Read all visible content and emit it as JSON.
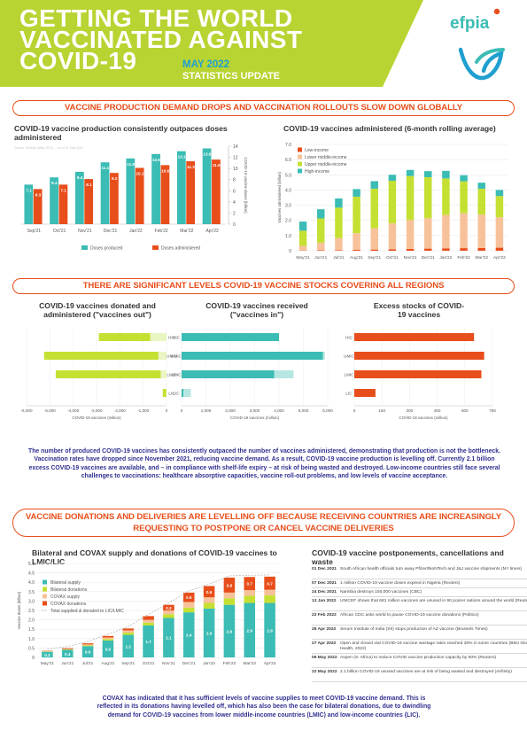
{
  "header": {
    "title_lines": [
      "GETTING THE WORLD",
      "VACCINATED AGAINST",
      "COVID-19"
    ],
    "date": "MAY 2022",
    "subtitle": "STATISTICS UPDATE",
    "logo_text": "efpia",
    "colors": {
      "green": "#b8d432",
      "orange": "#e84e1b",
      "teal": "#3bbcb4",
      "navy": "#303090"
    }
  },
  "section1": {
    "banner": "VACCINE PRODUCTION DEMAND DROPS AND VACCINATION ROLLOUTS SLOW DOWN GLOBALLY"
  },
  "section2": {
    "banner": "THERE ARE SIGNIFICANT LEVELS COVID-19 VACCINE STOCKS COVERING ALL REGIONS",
    "paragraph": "The number of produced COVID-19 vaccines has consistently outpaced the number of vaccines administered, demonstrating that production is not the bottleneck. Vaccination rates have dropped since November 2021, reducing vaccine demand. As a result, COVID-19 vaccine production is levelling off. Currently 2.1 billion excess COVID-19 vaccines are available, and – in compliance with shelf-life expiry – at risk of being wasted and destroyed. Low-income countries still face several challenges to vaccinations: healthcare absorptive capacities, vaccine roll-out problems, and low levels of vaccine acceptance."
  },
  "section3": {
    "banner_lines": [
      "VACCINE DONATIONS AND DELIVERIES ARE LEVELLING OFF BECAUSE RECEIVING COUNTRIES ARE INCREASINGLY",
      "REQUESTING TO POSTPONE OR CANCEL VACCINE DELIVERIES"
    ],
    "paragraph": "COVAX has indicated that it has sufficient levels of vaccine supplies to meet COVID-19 vaccine demand. This is reflected in its donations having levelled off, which has also been the case for bilateral donations, due to dwindling demand for COVID-19 vaccines from lower middle-income countries (LMIC) and low-income countries (LIC).",
    "timeline_title": "COVID-19 vaccine postponements, cancellations and waste",
    "timeline": [
      {
        "date": "01 Dec 2021",
        "text": "South African health officials turn away Pfizer/BioNTech and J&J vaccine shipments (NY times)"
      },
      {
        "date": "07 Dec 2021",
        "text": "1 million COVID-19 vaccine doses expired in Nigeria (Reuters)"
      },
      {
        "date": "24 Dec 2021",
        "text": "Namibia destroys 150,000 vaccines (CBC)"
      },
      {
        "date": "13 Jan 2022",
        "text": "UNICEF shows that 681 million vaccines are unused in 90 poorer nations around the world (Reuters)"
      },
      {
        "date": "22 Feb 2022",
        "text": "African CDC asks world to pause COVID-19 vaccine donations (Politico)"
      },
      {
        "date": "26 Apr 2022",
        "text": "Serum Institute of India (SII) stops production of AZ vaccine (Brussels Times)"
      },
      {
        "date": "27 Apr 2022",
        "text": "Open and closed vial COVID-19 vaccine wastage rates reached 30% in some countries (BMJ Global Health, 2022)"
      },
      {
        "date": "05 May 2022",
        "text": "Aspen (S. Africa) to reduce COVID vaccine production capacity by 50% (Reuters)"
      },
      {
        "date": "22 May 2022",
        "text": "2.1 billion COVID-19 unused vaccines are at risk of being wasted and destroyed (Airfinity)"
      }
    ]
  },
  "chart_data": [
    {
      "id": "production",
      "type": "bar",
      "title": "COVID-19 vaccine production consistently outpaces doses administered",
      "note": "Source: Airfinity (May 2022) ... as of 11 May 2022",
      "categories": [
        "Sep'21",
        "Oct'21",
        "Nov'21",
        "Dec'21",
        "Jan'22",
        "Feb'22",
        "Mar'22",
        "Apr'22"
      ],
      "series": [
        {
          "name": "Doses produced",
          "color": "#3bbcb4",
          "values": [
            7.1,
            8.4,
            9.4,
            11.1,
            11.8,
            12.6,
            13.1,
            13.6
          ]
        },
        {
          "name": "Doses administered",
          "color": "#e84e1b",
          "values": [
            6.3,
            7.1,
            8.1,
            9.2,
            10.1,
            10.6,
            11.3,
            11.6
          ]
        }
      ],
      "ylabel": "COVID-19 vaccine doses (billion)",
      "ylim": [
        0,
        14
      ],
      "yticks": [
        0,
        2,
        4,
        6,
        8,
        10,
        12,
        14
      ]
    },
    {
      "id": "administered",
      "type": "bar",
      "stacked": true,
      "title": "COVID-19 vaccines administered (6-month rolling average)",
      "categories": [
        "May'21",
        "Jun'21",
        "Jul'21",
        "Aug'21",
        "Sep'21",
        "Oct'21",
        "Nov'21",
        "Dec'21",
        "Jan'22",
        "Feb'22",
        "Mar'22",
        "Apr'22"
      ],
      "series": [
        {
          "name": "Low-income",
          "color": "#e84e1b",
          "values": [
            0.02,
            0.03,
            0.04,
            0.06,
            0.08,
            0.1,
            0.12,
            0.14,
            0.16,
            0.17,
            0.18,
            0.2
          ]
        },
        {
          "name": "Lower middle-income",
          "color": "#f7c29a",
          "values": [
            0.3,
            0.5,
            0.8,
            1.1,
            1.4,
            1.7,
            1.9,
            2.0,
            2.2,
            2.3,
            2.2,
            2.0
          ]
        },
        {
          "name": "Upper middle-income",
          "color": "#c5e032",
          "values": [
            1.0,
            1.6,
            2.0,
            2.4,
            2.6,
            2.8,
            2.9,
            2.7,
            2.4,
            2.1,
            1.7,
            1.4
          ]
        },
        {
          "name": "High-income",
          "color": "#3bbcb4",
          "values": [
            0.6,
            0.6,
            0.6,
            0.5,
            0.5,
            0.4,
            0.4,
            0.4,
            0.5,
            0.4,
            0.4,
            0.4
          ]
        }
      ],
      "ylabel": "Vaccines administered (billion)",
      "ylim": [
        0,
        7
      ],
      "yticks": [
        "0",
        "1.0",
        "2.0",
        "3.0",
        "4.0",
        "5.0",
        "6.0",
        "7.0"
      ]
    },
    {
      "id": "donated-out",
      "type": "bar",
      "orientation": "horizontal",
      "title": "COVID-19 vaccines donated and administered (\"vaccines out\")",
      "categories": [
        "HIC",
        "UMIC",
        "LMIC",
        "LIC"
      ],
      "series": [
        {
          "name": "Vaccines donated (out)",
          "color": "#eaf5c4",
          "values": [
            -700,
            -350,
            -250,
            -10
          ]
        },
        {
          "name": "Vaccinations",
          "color": "#c5e032",
          "values": [
            -2200,
            -4900,
            -4500,
            -150
          ]
        }
      ],
      "xlabel": "COVID-19 vaccines (million)",
      "xlim": [
        -6000,
        0
      ],
      "xticks": [
        "-6,000",
        "-5,000",
        "-4,000",
        "-3,000",
        "-2,000",
        "-1,000",
        "0"
      ]
    },
    {
      "id": "received-in",
      "type": "bar",
      "orientation": "horizontal",
      "title": "COVID-19 vaccines received (\"vaccines in\")",
      "categories": [
        "HIC",
        "UMIC",
        "LMIC",
        "LIC"
      ],
      "series": [
        {
          "name": "Bilateral supply",
          "color": "#3bbcb4",
          "values": [
            4000,
            5800,
            3800,
            80
          ]
        },
        {
          "name": "Received vaccine donations (in)",
          "color": "#b6e6e2",
          "values": [
            0,
            80,
            800,
            300
          ]
        }
      ],
      "xlabel": "COVID-19 vaccines (million)",
      "xlim": [
        0,
        6000
      ],
      "xticks": [
        "0",
        "1,000",
        "2,000",
        "3,000",
        "4,000",
        "5,000",
        "6,000"
      ]
    },
    {
      "id": "excess-stocks",
      "type": "bar",
      "orientation": "horizontal",
      "title": "Excess stocks of COVID-19 vaccines",
      "categories": [
        "HIC",
        "UMIC",
        "LMIC",
        "LIC"
      ],
      "series": [
        {
          "name": "Excess stocks",
          "color": "#e84e1b",
          "values": [
            650,
            705,
            690,
            115
          ]
        }
      ],
      "xlabel": "COVID-19 vaccines (million)",
      "xlim": [
        0,
        750
      ],
      "xticks": [
        "0",
        "150",
        "300",
        "450",
        "600",
        "750"
      ]
    },
    {
      "id": "donations-supply",
      "type": "bar",
      "stacked": true,
      "title": "Bilateral and COVAX supply and donations of COVID-19 vaccines to LMIC/LIC",
      "categories": [
        "May'21",
        "Jun'21",
        "Jul'21",
        "Aug'21",
        "Sep'21",
        "Oct'21",
        "Nov'21",
        "Dec'21",
        "Jan'22",
        "Feb'22",
        "Mar'22",
        "Apr'22"
      ],
      "series": [
        {
          "name": "Bilateral supply",
          "color": "#3bbcb4",
          "values": [
            0.3,
            0.4,
            0.6,
            0.9,
            1.2,
            1.7,
            2.1,
            2.4,
            2.6,
            2.8,
            2.9,
            2.9
          ]
        },
        {
          "name": "Bilateral donations",
          "color": "#c5e032",
          "values": [
            0.02,
            0.03,
            0.05,
            0.08,
            0.12,
            0.15,
            0.2,
            0.25,
            0.3,
            0.35,
            0.38,
            0.4
          ]
        },
        {
          "name": "COVAX supply",
          "color": "#f7c29a",
          "values": [
            0.01,
            0.02,
            0.04,
            0.08,
            0.12,
            0.15,
            0.2,
            0.3,
            0.3,
            0.3,
            0.3,
            0.3
          ]
        },
        {
          "name": "COVAX donations",
          "color": "#e84e1b",
          "values": [
            0.02,
            0.04,
            0.06,
            0.08,
            0.1,
            0.2,
            0.3,
            0.5,
            0.6,
            0.8,
            0.7,
            0.7
          ]
        }
      ],
      "segment_labels": {
        "Bilateral supply": [
          "0.3",
          "0.4",
          "0.6",
          "0.9",
          "1.2",
          "1.7",
          "2.1",
          "2.4",
          "2.6",
          "2.8",
          "2.9",
          "2.9"
        ],
        "COVAX donations": [
          "",
          "",
          "",
          "",
          "",
          "",
          "0.3",
          "0.5",
          "0.6",
          "0.8",
          "0.7",
          "0.7"
        ]
      },
      "total_series_name": "Total supplied & donated to LIC/LMIC",
      "ylabel": "Vaccine doses (billion)",
      "ylim": [
        0,
        5
      ],
      "yticks": [
        "0",
        "0.5",
        "1.0",
        "1.5",
        "2.0",
        "2.5",
        "3.0",
        "3.5",
        "4.0",
        "4.5",
        "5.0"
      ]
    }
  ]
}
